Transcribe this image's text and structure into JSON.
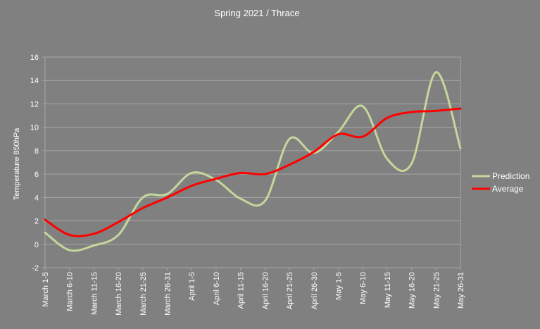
{
  "chart_data": {
    "type": "line",
    "title": "Spring 2021 / Thrace",
    "xlabel": "",
    "ylabel": "Temperature 850hPa",
    "ylim": [
      -2,
      16
    ],
    "yticks": [
      -2,
      0,
      2,
      4,
      6,
      8,
      10,
      12,
      14,
      16
    ],
    "grid": true,
    "smooth": true,
    "legend_position": "right",
    "categories": [
      "March 1-5",
      "March 6-10",
      "March 11-15",
      "March 16-20",
      "March 21-25",
      "March 26-31",
      "April 1-5",
      "April 6-10",
      "April 11-15",
      "April 16-20",
      "April 21-25",
      "April 26-30",
      "May 1-5",
      "May 6-10",
      "May 11-15",
      "May 16-20",
      "May 21-25",
      "May 26-31"
    ],
    "series": [
      {
        "name": "Prediction",
        "color": "#c4d79b",
        "values": [
          1.0,
          -0.5,
          -0.1,
          0.8,
          4.0,
          4.3,
          6.1,
          5.5,
          3.9,
          3.7,
          9.0,
          7.8,
          9.6,
          11.8,
          7.3,
          6.9,
          14.7,
          8.2
        ]
      },
      {
        "name": "Average",
        "color": "#ff0000",
        "values": [
          2.1,
          0.8,
          0.9,
          1.9,
          3.1,
          4.0,
          5.0,
          5.6,
          6.1,
          6.0,
          6.8,
          7.9,
          9.4,
          9.2,
          10.8,
          11.3,
          11.4,
          11.6
        ]
      }
    ]
  }
}
